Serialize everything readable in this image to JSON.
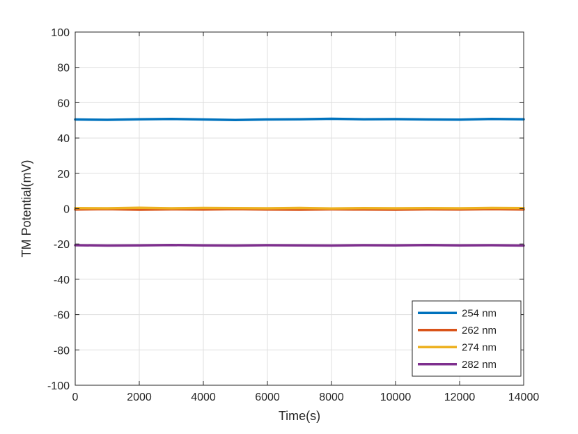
{
  "chart_data": {
    "type": "line",
    "title": "",
    "xlabel": "Time(s)",
    "ylabel": "TM Potential(mV)",
    "xlim": [
      0,
      14000
    ],
    "ylim": [
      -100,
      100
    ],
    "xticks": [
      0,
      2000,
      4000,
      6000,
      8000,
      10000,
      12000,
      14000
    ],
    "yticks": [
      -100,
      -80,
      -60,
      -40,
      -20,
      0,
      20,
      40,
      60,
      80,
      100
    ],
    "grid": true,
    "legend_position": "bottom-right",
    "series": [
      {
        "name": "254 nm",
        "color": "#0072bd",
        "x": [
          0,
          1000,
          2000,
          3000,
          4000,
          5000,
          6000,
          7000,
          8000,
          9000,
          10000,
          11000,
          12000,
          13000,
          14000
        ],
        "y": [
          50.5,
          50.3,
          50.6,
          50.8,
          50.5,
          50.2,
          50.5,
          50.6,
          50.9,
          50.6,
          50.7,
          50.5,
          50.4,
          50.8,
          50.6
        ]
      },
      {
        "name": "262 nm",
        "color": "#d95319",
        "x": [
          0,
          1000,
          2000,
          3000,
          4000,
          5000,
          6000,
          7000,
          8000,
          9000,
          10000,
          11000,
          12000,
          13000,
          14000
        ],
        "y": [
          -0.5,
          -0.3,
          -0.6,
          -0.4,
          -0.5,
          -0.3,
          -0.5,
          -0.6,
          -0.4,
          -0.5,
          -0.6,
          -0.4,
          -0.5,
          -0.3,
          -0.5
        ]
      },
      {
        "name": "274 nm",
        "color": "#edb120",
        "x": [
          0,
          1000,
          2000,
          3000,
          4000,
          5000,
          6000,
          7000,
          8000,
          9000,
          10000,
          11000,
          12000,
          13000,
          14000
        ],
        "y": [
          0.3,
          0.2,
          0.5,
          0.2,
          0.4,
          0.3,
          0.2,
          0.4,
          0.1,
          0.3,
          0.2,
          0.3,
          0.2,
          0.4,
          0.3
        ]
      },
      {
        "name": "282 nm",
        "color": "#7e2f8e",
        "x": [
          0,
          1000,
          2000,
          3000,
          4000,
          5000,
          6000,
          7000,
          8000,
          9000,
          10000,
          11000,
          12000,
          13000,
          14000
        ],
        "y": [
          -20.7,
          -20.9,
          -20.8,
          -20.6,
          -20.8,
          -20.9,
          -20.7,
          -20.8,
          -20.9,
          -20.7,
          -20.8,
          -20.6,
          -20.8,
          -20.7,
          -20.9
        ]
      }
    ]
  }
}
